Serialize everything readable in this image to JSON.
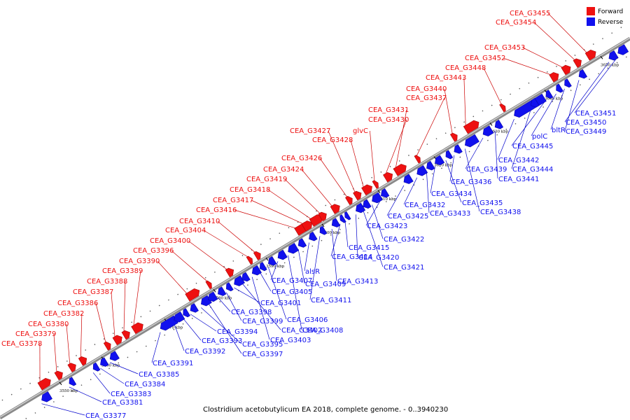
{
  "caption": "Clostridium acetobutylicum EA 2018, complete genome. - 0..3940230",
  "colors": {
    "forward": "#ee1111",
    "reverse": "#1111ee",
    "backbone": "#8a8a8a",
    "leader_forward": "#cc0000",
    "leader_reverse": "#0000cc"
  },
  "legend": [
    {
      "label": "Forward",
      "strand": "forward"
    },
    {
      "label": "Reverse",
      "strand": "reverse"
    }
  ],
  "ticks": [
    "3550 kbp",
    "3560 kbp",
    "3570 kbp",
    "3580 kbp",
    "3590 kbp",
    "3600 kbp",
    "3610 kbp",
    "3620 kbp",
    "3630 kbp",
    "3640 kbp",
    "3650 kbp"
  ],
  "forward_genes": [
    "CEA_G3378",
    "CEA_G3379",
    "CEA_G3380",
    "CEA_G3382",
    "CEA_G3386",
    "CEA_G3387",
    "CEA_G3388",
    "CEA_G3389",
    "CEA_G3390",
    "CEA_G3396",
    "CEA_G3400",
    "CEA_G3404",
    "CEA_G3410",
    "CEA_G3416",
    "CEA_G3417",
    "CEA_G3418",
    "CEA_G3419",
    "CEA_G3424",
    "CEA_G3426",
    "CEA_G3427",
    "CEA_G3428",
    "glvC",
    "CEA_G3430",
    "CEA_G3431",
    "CEA_G3437",
    "CEA_G3440",
    "CEA_G3443",
    "CEA_G3448",
    "CEA_G3452",
    "CEA_G3453",
    "CEA_G3454",
    "CEA_G3455"
  ],
  "reverse_genes": [
    "CEA_G3377",
    "CEA_G3381",
    "CEA_G3383",
    "CEA_G3384",
    "CEA_G3385",
    "CEA_G3391",
    "CEA_G3392",
    "CEA_G3393",
    "CEA_G3394",
    "CEA_G3395",
    "CEA_G3397",
    "CEA_G3398",
    "CEA_G3399",
    "CEA_G3401",
    "CEA_G3402",
    "CEA_G3403",
    "CEA_G3405",
    "CEA_G3406",
    "CEA_G3407",
    "CEA_G3408",
    "CEA_G3409",
    "alsR",
    "CEA_G3411",
    "CEA_G3413",
    "CEA_G3414",
    "CEA_G3415",
    "CEA_G3420",
    "CEA_G3421",
    "CEA_G3422",
    "CEA_G3423",
    "CEA_G3425",
    "CEA_G3432",
    "CEA_G3433",
    "CEA_G3434",
    "CEA_G3435",
    "CEA_G3436",
    "CEA_G3438",
    "CEA_G3439",
    "CEA_G3441",
    "CEA_G3442",
    "CEA_G3444",
    "CEA_G3445",
    "polC",
    "bltR",
    "CEA_G3449",
    "CEA_G3450",
    "CEA_G3451"
  ]
}
